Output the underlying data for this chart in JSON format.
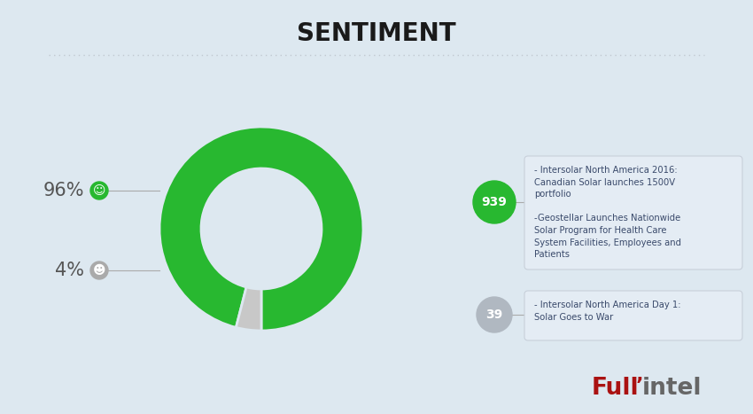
{
  "title": "SENTIMENT",
  "background_color": "#dde8f0",
  "donut_green": "#28b830",
  "donut_gray": "#c8c8c8",
  "donut_values": [
    96,
    4
  ],
  "positive_pct": "96%",
  "negative_pct": "4%",
  "positive_icon_color": "#28b830",
  "negative_icon_color": "#aaaaaa",
  "separator_color": "#c0c8d0",
  "bubble_positive_color": "#28b830",
  "bubble_positive_count": "939",
  "bubble_negative_color": "#b0b8c1",
  "bubble_negative_count": "39",
  "box_bg_color": "#e4ecf4",
  "box_border_color": "#c8d0da",
  "box_text_color": "#3a4a6b",
  "text1": "- Intersolar North America 2016:\nCanadian Solar launches 1500V\nportfolio\n\n-Geostellar Launches Nationwide\nSolar Program for Health Care\nSystem Facilities, Employees and\nPatients",
  "text2": "- Intersolar North America Day 1:\nSolar Goes to War",
  "fullintel_red": "#aa1111",
  "fullintel_gray": "#666666",
  "label_color": "#555555",
  "line_color": "#aaaaaa"
}
